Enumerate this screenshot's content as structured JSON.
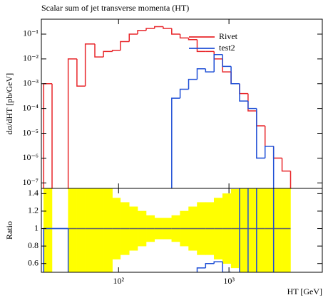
{
  "chart_data": [
    {
      "type": "histogram",
      "title": "Scalar sum of jet transverse momenta (HT)",
      "y_label": "dσ/dHT [pb/GeV]",
      "xlog": true,
      "ylog": true,
      "legend": "upper right",
      "bins": [
        21,
        25,
        35,
        42,
        50,
        61,
        73,
        88,
        104,
        125,
        149,
        178,
        212,
        254,
        303,
        361,
        431,
        515,
        614,
        733,
        875,
        1045,
        1247,
        1489,
        1778,
        2122,
        2535,
        3025,
        3612
      ],
      "series": [
        {
          "name": "Rivet",
          "color": "#e8262a",
          "values": [
            0.001,
            null,
            0.01,
            0.0008,
            0.04,
            0.012,
            0.02,
            0.022,
            0.05,
            0.1,
            0.14,
            0.17,
            0.2,
            0.17,
            0.1,
            0.07,
            0.06,
            0.02,
            0.02,
            0.01,
            0.003,
            0.001,
            0.0004,
            8e-05,
            2e-05,
            3e-06,
            1e-06,
            3e-07
          ]
        },
        {
          "name": "test2",
          "color": "#1f4fd6",
          "values": [
            null,
            null,
            null,
            null,
            null,
            null,
            null,
            null,
            null,
            null,
            null,
            null,
            null,
            null,
            0.00026,
            0.0006,
            0.0015,
            0.004,
            0.003,
            0.015,
            0.005,
            0.001,
            0.0002,
            0.0001,
            1e-06,
            3e-06,
            null,
            null
          ]
        }
      ],
      "xlim": [
        20,
        7000
      ],
      "ylim": [
        6e-08,
        0.4
      ],
      "yticks": [
        {
          "value": 0.1,
          "label": "10⁻¹"
        },
        {
          "value": 0.01,
          "label": "10⁻²"
        },
        {
          "value": 0.001,
          "label": "10⁻³"
        },
        {
          "value": 0.0001,
          "label": "10⁻⁴"
        },
        {
          "value": 1e-05,
          "label": "10⁻⁵"
        },
        {
          "value": 1e-06,
          "label": "10⁻⁶"
        },
        {
          "value": 1e-07,
          "label": "10⁻⁷"
        }
      ]
    },
    {
      "type": "histogram",
      "x_label": "HT [GeV]",
      "y_label": "Ratio",
      "xlog": true,
      "ylog": false,
      "bins": [
        21,
        25,
        35,
        42,
        50,
        61,
        73,
        88,
        104,
        125,
        149,
        178,
        212,
        254,
        303,
        361,
        431,
        515,
        614,
        733,
        875,
        1045,
        1247,
        1489,
        1778,
        2122,
        2535,
        3025,
        3612
      ],
      "series": [
        {
          "color": "#666666",
          "band_color": "#ffff00",
          "values": [
            1,
            1,
            1,
            1,
            1,
            1,
            1,
            1,
            1,
            1,
            1,
            1,
            1,
            1,
            1,
            1,
            1,
            1,
            1,
            1,
            1,
            1,
            1,
            1,
            1,
            1,
            1,
            1
          ],
          "errors": [
            0.6,
            null,
            0.6,
            0.6,
            0.6,
            0.5,
            0.5,
            0.35,
            0.3,
            0.25,
            0.2,
            0.15,
            0.12,
            0.12,
            0.15,
            0.2,
            0.25,
            0.3,
            0.3,
            0.35,
            0.4,
            0.45,
            0.5,
            0.6,
            0.6,
            0.6,
            0.6,
            0.6
          ]
        },
        {
          "color": "#1f4fd6",
          "values": [
            1,
            1,
            null,
            null,
            null,
            null,
            null,
            null,
            null,
            null,
            null,
            null,
            null,
            null,
            null,
            null,
            null,
            0.55,
            0.6,
            0.62,
            0.5,
            null,
            1.5,
            null,
            1.5,
            1.5,
            null,
            null
          ]
        }
      ],
      "xlim": [
        20,
        7000
      ],
      "ylim": [
        0.5,
        1.46
      ],
      "xticks": [
        {
          "value": 100,
          "label": "10²"
        },
        {
          "value": 1000,
          "label": "10³"
        }
      ],
      "yticks": [
        0.6,
        0.8,
        1,
        1.2,
        1.4
      ]
    }
  ]
}
